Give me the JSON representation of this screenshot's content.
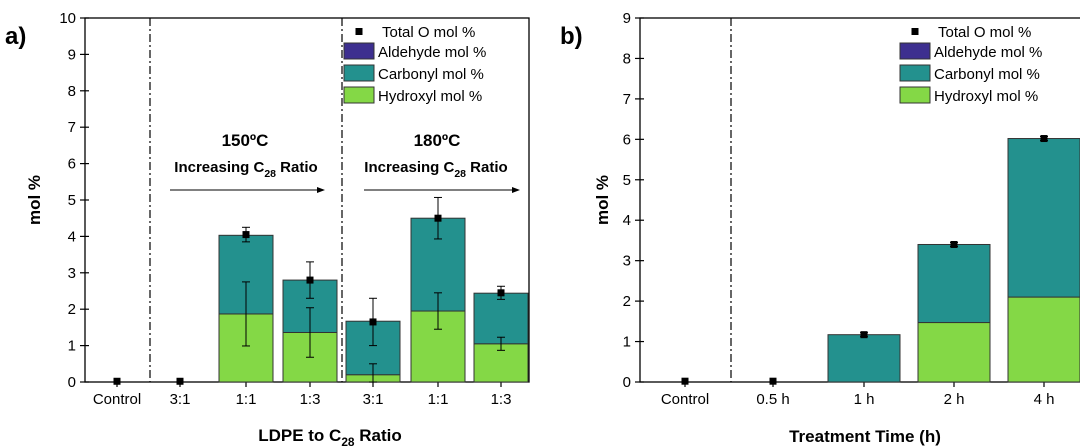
{
  "colors": {
    "aldehyde": "#3d2f8f",
    "carbonyl": "#23918e",
    "hydroxyl": "#84d846",
    "total": "#000000"
  },
  "legend": {
    "total": "Total O mol %",
    "aldehyde": "Aldehyde mol %",
    "carbonyl": "Carbonyl mol %",
    "hydroxyl": "Hydroxyl mol %"
  },
  "chart_data": [
    {
      "type": "bar",
      "stacked": true,
      "panel_label": "a)",
      "xlabel": "LDPE to C",
      "xlabel_sub": "28",
      "xlabel_tail": " Ratio",
      "ylabel": "mol %",
      "ylim": [
        0,
        10
      ],
      "yticks": [
        0,
        1,
        2,
        3,
        4,
        5,
        6,
        7,
        8,
        9,
        10
      ],
      "categories": [
        "Control",
        "3:1",
        "1:1",
        "1:3",
        "3:1",
        "1:1",
        "1:3"
      ],
      "series": [
        {
          "name": "Hydroxyl mol %",
          "values": [
            0,
            0,
            1.87,
            1.36,
            0.2,
            1.95,
            1.05
          ]
        },
        {
          "name": "Carbonyl mol %",
          "values": [
            0,
            0,
            2.16,
            1.44,
            1.47,
            2.55,
            1.39
          ]
        },
        {
          "name": "Aldehyde mol %",
          "values": [
            0,
            0,
            0,
            0,
            0,
            0,
            0
          ]
        }
      ],
      "total": [
        0.02,
        0.02,
        4.05,
        2.8,
        1.65,
        4.5,
        2.45
      ],
      "total_err": [
        0,
        0,
        0.2,
        0.5,
        0.65,
        0.57,
        0.18
      ],
      "hydroxyl_err": [
        0,
        0,
        0.88,
        0.68,
        0.3,
        0.5,
        0.18
      ],
      "annotations": {
        "group1_temp": "150ºC",
        "group2_temp": "180ºC",
        "ratio_pre": "Increasing C",
        "ratio_sub": "28",
        "ratio_post": " Ratio"
      },
      "grid": false,
      "legend_position": "top-right"
    },
    {
      "type": "bar",
      "stacked": true,
      "panel_label": "b)",
      "xlabel": "Treatment Time (h)",
      "ylabel": "mol %",
      "ylim": [
        0,
        9
      ],
      "yticks": [
        0,
        1,
        2,
        3,
        4,
        5,
        6,
        7,
        8,
        9
      ],
      "categories": [
        "Control",
        "0.5 h",
        "1 h",
        "2 h",
        "4 h"
      ],
      "series": [
        {
          "name": "Hydroxyl mol %",
          "values": [
            0,
            0,
            0,
            1.47,
            2.1
          ]
        },
        {
          "name": "Carbonyl mol %",
          "values": [
            0,
            0,
            1.17,
            1.93,
            3.92
          ]
        },
        {
          "name": "Aldehyde mol %",
          "values": [
            0,
            0,
            0,
            0,
            0
          ]
        }
      ],
      "total": [
        0.02,
        0.02,
        1.17,
        3.4,
        6.02
      ],
      "total_err": [
        0,
        0,
        0.05,
        0.05,
        0.05
      ],
      "grid": false,
      "legend_position": "top-right"
    }
  ]
}
